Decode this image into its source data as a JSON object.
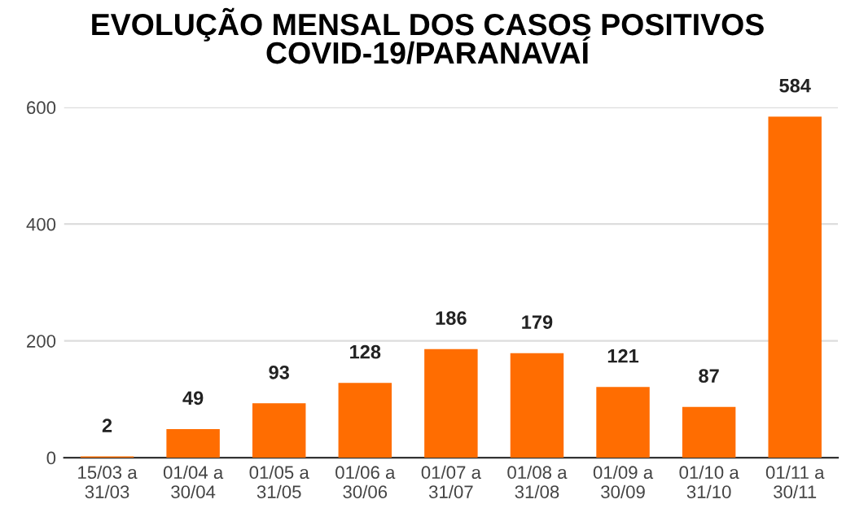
{
  "chart_data": {
    "type": "bar",
    "title": "EVOLUÇÃO MENSAL DOS CASOS POSITIVOS\nCOVID-19/PARANAVAÍ",
    "categories": [
      "15/03 a\n31/03",
      "01/04 a\n30/04",
      "01/05 a\n31/05",
      "01/06 a\n30/06",
      "01/07 a\n31/07",
      "01/08 a\n31/08",
      "01/09 a\n30/09",
      "01/10 a\n31/10",
      "01/11 a\n30/11"
    ],
    "values": [
      2,
      49,
      93,
      128,
      186,
      179,
      121,
      87,
      584
    ],
    "color": "#ff6d01",
    "ylim": [
      0,
      600
    ],
    "yticks": [
      0,
      200,
      400,
      600
    ],
    "grid": "y",
    "data_labels": true
  }
}
